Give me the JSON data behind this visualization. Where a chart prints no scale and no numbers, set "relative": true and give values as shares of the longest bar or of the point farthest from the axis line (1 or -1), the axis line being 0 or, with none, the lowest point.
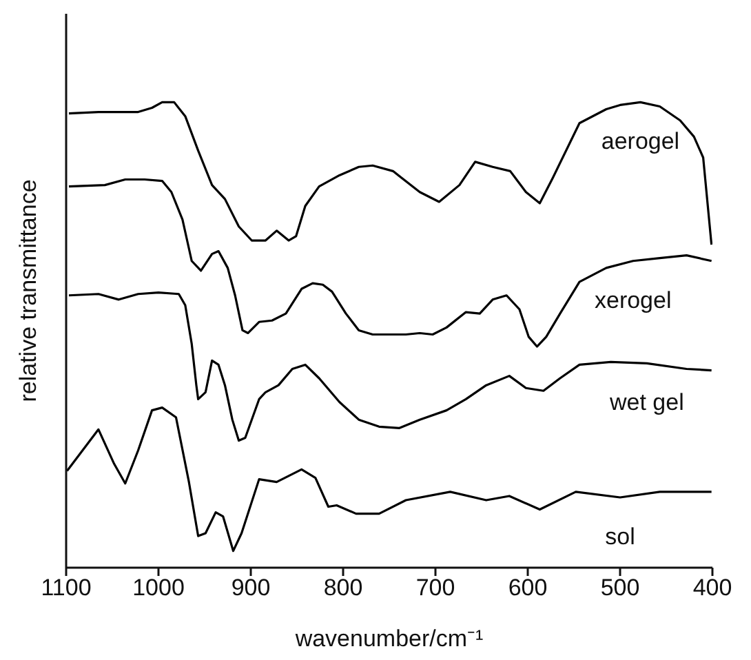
{
  "chart_data": {
    "type": "line",
    "relative": true,
    "xlabel": "wavenumber/cm⁻¹",
    "ylabel": "relative transmittance",
    "xlim": [
      1100,
      400
    ],
    "xticks": [
      1100,
      1000,
      900,
      800,
      700,
      600,
      500,
      400
    ],
    "series": [
      {
        "name": "aerogel",
        "color": "#000000",
        "x": [
          1097,
          1065,
          1022,
          1007,
          996,
          983,
          971,
          957,
          942,
          928,
          913,
          899,
          884,
          872,
          859,
          851,
          841,
          826,
          804,
          783,
          768,
          746,
          717,
          696,
          674,
          657,
          638,
          619,
          602,
          587,
          573,
          544,
          515,
          500,
          478,
          457,
          435,
          420,
          410,
          401
        ],
        "values": [
          0.976,
          0.979,
          0.979,
          0.988,
          1.0,
          1.0,
          0.97,
          0.896,
          0.822,
          0.792,
          0.733,
          0.703,
          0.703,
          0.724,
          0.703,
          0.712,
          0.777,
          0.819,
          0.843,
          0.861,
          0.864,
          0.852,
          0.807,
          0.786,
          0.822,
          0.872,
          0.861,
          0.852,
          0.807,
          0.783,
          0.837,
          0.955,
          0.985,
          0.994,
          1.0,
          0.991,
          0.961,
          0.926,
          0.881,
          0.694
        ]
      },
      {
        "name": "xerogel",
        "color": "#000000",
        "x": [
          1097,
          1058,
          1036,
          1015,
          996,
          986,
          974,
          964,
          954,
          942,
          935,
          925,
          917,
          909,
          903,
          891,
          877,
          862,
          845,
          833,
          822,
          812,
          797,
          783,
          768,
          746,
          732,
          717,
          703,
          688,
          667,
          652,
          638,
          623,
          609,
          599,
          590,
          580,
          565,
          544,
          515,
          486,
          457,
          428,
          401
        ],
        "values": [
          0.819,
          0.822,
          0.834,
          0.834,
          0.831,
          0.807,
          0.748,
          0.659,
          0.638,
          0.674,
          0.68,
          0.644,
          0.585,
          0.51,
          0.504,
          0.528,
          0.531,
          0.546,
          0.599,
          0.611,
          0.608,
          0.593,
          0.546,
          0.51,
          0.501,
          0.501,
          0.501,
          0.504,
          0.501,
          0.516,
          0.549,
          0.546,
          0.576,
          0.585,
          0.555,
          0.496,
          0.475,
          0.496,
          0.546,
          0.614,
          0.644,
          0.659,
          0.665,
          0.671,
          0.659
        ]
      },
      {
        "name": "wet gel",
        "color": "#000000",
        "x": [
          1097,
          1065,
          1043,
          1022,
          1000,
          978,
          971,
          964,
          959,
          957,
          949,
          942,
          935,
          928,
          920,
          913,
          906,
          891,
          884,
          870,
          855,
          841,
          826,
          804,
          783,
          761,
          739,
          717,
          688,
          667,
          645,
          620,
          602,
          583,
          565,
          544,
          510,
          471,
          428,
          401
        ],
        "values": [
          0.585,
          0.588,
          0.576,
          0.588,
          0.591,
          0.588,
          0.564,
          0.481,
          0.392,
          0.362,
          0.377,
          0.445,
          0.436,
          0.392,
          0.318,
          0.273,
          0.279,
          0.362,
          0.377,
          0.392,
          0.427,
          0.436,
          0.407,
          0.356,
          0.318,
          0.303,
          0.3,
          0.318,
          0.338,
          0.362,
          0.392,
          0.412,
          0.386,
          0.38,
          0.407,
          0.436,
          0.442,
          0.439,
          0.427,
          0.424
        ]
      },
      {
        "name": "sol",
        "color": "#000000",
        "x": [
          1099,
          1065,
          1048,
          1036,
          1022,
          1007,
          996,
          981,
          967,
          957,
          949,
          938,
          930,
          919,
          910,
          891,
          872,
          845,
          830,
          816,
          807,
          786,
          761,
          732,
          684,
          645,
          620,
          587,
          548,
          500,
          457,
          401
        ],
        "values": [
          0.208,
          0.297,
          0.223,
          0.181,
          0.252,
          0.338,
          0.344,
          0.323,
          0.184,
          0.068,
          0.074,
          0.119,
          0.11,
          0.036,
          0.074,
          0.19,
          0.184,
          0.211,
          0.193,
          0.131,
          0.134,
          0.116,
          0.116,
          0.145,
          0.163,
          0.145,
          0.154,
          0.125,
          0.163,
          0.151,
          0.163,
          0.163
        ]
      }
    ]
  }
}
